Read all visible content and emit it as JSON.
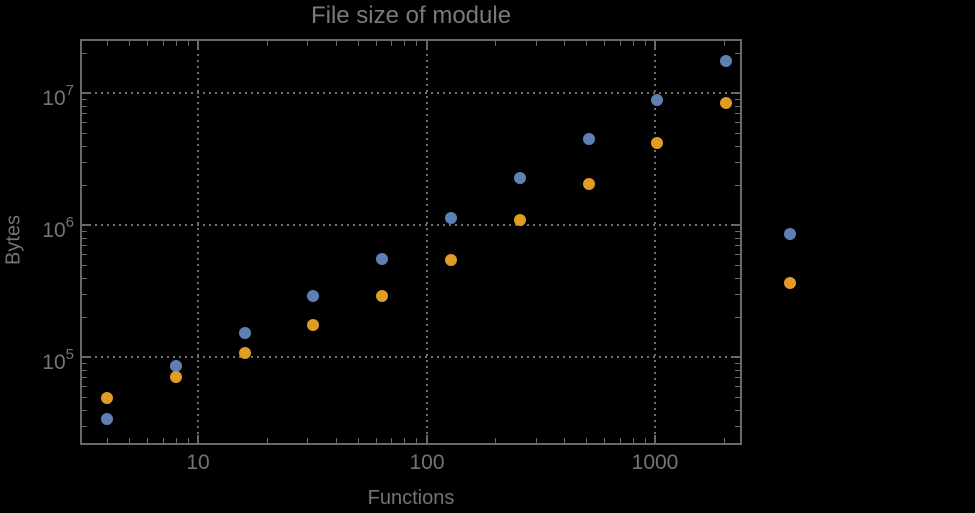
{
  "title": "File size of module",
  "axes": {
    "x": {
      "label": "Functions",
      "scale": "log",
      "ticks": [
        {
          "label": "10",
          "value": 10
        },
        {
          "label": "100",
          "value": 100
        },
        {
          "label": "1000",
          "value": 1000
        }
      ]
    },
    "y": {
      "label": "Bytes",
      "scale": "log",
      "ticks": [
        {
          "base": "10",
          "exp": "5",
          "value": 100000
        },
        {
          "base": "10",
          "exp": "6",
          "value": 1000000
        },
        {
          "base": "10",
          "exp": "7",
          "value": 10000000
        }
      ]
    }
  },
  "colors": {
    "background": "#000000",
    "frame": "#696969",
    "grid": "#6e6e6e",
    "text": "#767676",
    "series_blue": "#5E81B5",
    "series_orange": "#E19C24"
  },
  "chart_data": {
    "type": "scatter",
    "title": "File size of module",
    "xlabel": "Functions",
    "ylabel": "Bytes",
    "xscale": "log",
    "yscale": "log",
    "xlim": [
      3.1,
      2360
    ],
    "ylim": [
      22000,
      25000000
    ],
    "grid": "dotted-at-decades",
    "legend": "none",
    "x": [
      4,
      8,
      16,
      32,
      64,
      128,
      256,
      512,
      1024,
      2048,
      3900
    ],
    "series": [
      {
        "name": "blue",
        "color": "#5E81B5",
        "values": [
          34000,
          86000,
          152000,
          290000,
          552000,
          1130000,
          2270000,
          4490000,
          8850000,
          17500000,
          855000
        ]
      },
      {
        "name": "orange",
        "color": "#E19C24",
        "values": [
          49000,
          70000,
          107000,
          175000,
          290000,
          543000,
          1090000,
          2050000,
          4180000,
          8400000,
          364000
        ]
      }
    ]
  }
}
